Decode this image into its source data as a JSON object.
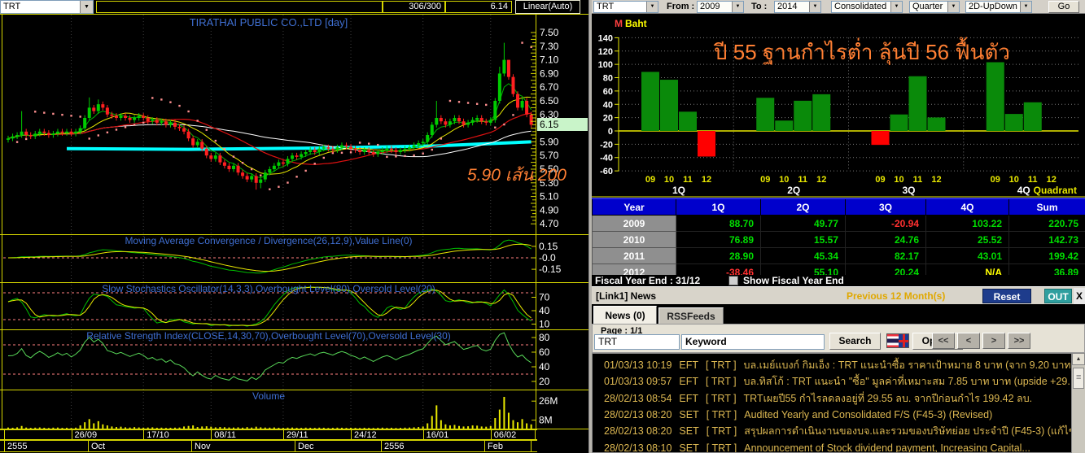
{
  "left_pane": {
    "toolbar": {
      "symbol": "TRT",
      "range_field": "306/300",
      "last_field": "6.14",
      "scale_mode": "Linear(Auto)"
    },
    "price_panel": {
      "title": "TIRATHAI PUBLIC CO.,LTD [day]",
      "annotation": "5.90 เส้น 200",
      "last_price": "6.15",
      "y_ticks": [
        7.5,
        7.3,
        7.1,
        6.9,
        6.7,
        6.5,
        6.3,
        5.9,
        5.7,
        5.5,
        5.3,
        5.1,
        4.9,
        4.7
      ]
    },
    "macd": {
      "title": "Moving Average Convergence / Divergence(26,12,9),Value Line(0)",
      "ticks": [
        [
          "0.15",
          0.15
        ],
        [
          "-0.0",
          0
        ],
        [
          "-0.15",
          -0.15
        ]
      ]
    },
    "stoch": {
      "title": "Slow Stochastics Oscillator(14,3,3),Overbought Level(80),Oversold Level(20)",
      "ticks": [
        [
          "70",
          70
        ],
        [
          "40",
          40
        ],
        [
          "10",
          10
        ]
      ]
    },
    "rsi": {
      "title": "Relative Strength Index(CLOSE,14,30,70),Overbought Level(70),Oversold Level(30)",
      "ticks": [
        [
          "80",
          80
        ],
        [
          "60",
          60
        ],
        [
          "40",
          40
        ],
        [
          "20",
          20
        ]
      ]
    },
    "volume": {
      "title": "Volume",
      "ticks": [
        [
          "26M",
          26
        ],
        [
          "8M",
          8
        ]
      ]
    },
    "date_axis": [
      "26/09",
      "17/10",
      "08/11",
      "29/11",
      "24/12",
      "16/01",
      "06/02"
    ],
    "month_axis": [
      "2555",
      "Oct",
      "Nov",
      "Dec",
      "2556",
      "Feb"
    ]
  },
  "right_pane": {
    "toolbar": {
      "symbol": "TRT",
      "from_label": "From :",
      "from_value": "2009",
      "to_label": "To :",
      "to_value": "2014",
      "statement": "Consolidated",
      "period": "Quarter",
      "chart_type": "2D-UpDown",
      "go_label": "Go"
    },
    "unit_m": "M",
    "unit_baht": "Baht",
    "quadrant_label": "Quadrant",
    "table": {
      "headers": [
        "Year",
        "1Q",
        "2Q",
        "3Q",
        "4Q",
        "Sum"
      ],
      "rows": [
        {
          "year": "2009",
          "values": [
            "88.70",
            "49.77",
            "-20.94",
            "103.22",
            "220.75"
          ]
        },
        {
          "year": "2010",
          "values": [
            "76.89",
            "15.57",
            "24.76",
            "25.52",
            "142.73"
          ]
        },
        {
          "year": "2011",
          "values": [
            "28.90",
            "45.34",
            "82.17",
            "43.01",
            "199.42"
          ]
        },
        {
          "year": "2012",
          "values": [
            "-38.46",
            "55.10",
            "20.24",
            "N/A",
            "36.89"
          ]
        }
      ]
    },
    "fiscal": {
      "text": "Fiscal  Year  End  :  31/12",
      "checkbox_label": "Show Fiscal Year End"
    },
    "news": {
      "title": "[Link1] News",
      "period_note": "Previous 12 Month(s)",
      "reset_label": "Reset",
      "out_label": "OUT",
      "close_label": "X",
      "tabs": [
        "News (0)",
        "RSSFeeds"
      ],
      "page_label": "Page : 1/1",
      "symbol_input": "TRT",
      "keyword_input": "Keyword",
      "search_label": "Search",
      "option_label": "Option",
      "nav": [
        "<<",
        "<",
        ">",
        ">>"
      ],
      "items": [
        {
          "date": "01/03/13 10:19",
          "src": "EFT",
          "sym": "[ TRT ]",
          "text": "บล.เมย์แบงก์ กิมเอ็ง : TRT แนะนำซื้อ ราคาเป้าหมาย 8 บาท (จาก 9.20 บาท)"
        },
        {
          "date": "01/03/13 09:57",
          "src": "EFT",
          "sym": "[ TRT ]",
          "text": "บล.ทิสโก้ : TRT แนะนำ \"ซื้อ\" มูลค่าที่เหมาะสม 7.85 บาท บาท (upside +29..."
        },
        {
          "date": "28/02/13 08:54",
          "src": "EFT",
          "sym": "[ TRT ]",
          "text": "TRTเผยปี55 กำไรลดลงอยู่ที่ 29.55 ลบ. จากปีก่อนกำไร 199.42 ลบ."
        },
        {
          "date": "28/02/13 08:20",
          "src": "SET",
          "sym": "[ TRT ]",
          "text": "Audited Yearly and Consolidated F/S (F45-3) (Revised)"
        },
        {
          "date": "28/02/13 08:20",
          "src": "SET",
          "sym": "[ TRT ]",
          "text": "สรุปผลการดำเนินงานของบจ.และรวมของบริษัทย่อย ประจำปี (F45-3) (แก้ไข)"
        },
        {
          "date": "28/02/13 08:10",
          "src": "SET",
          "sym": "[ TRT ]",
          "text": "Announcement of Stock dividend payment, Increasing Capital..."
        }
      ]
    }
  },
  "chart_data": [
    {
      "type": "candlestick",
      "title": "TIRATHAI PUBLIC CO.,LTD [day]",
      "ylim": [
        4.6,
        7.6
      ],
      "first_open": 5.93,
      "closes": [
        5.95,
        5.98,
        6.0,
        6.05,
        6.0,
        5.98,
        6.02,
        6.05,
        6.03,
        6.0,
        6.02,
        6.05,
        6.03,
        6.05,
        6.02,
        6.05,
        6.1,
        6.25,
        6.4,
        6.35,
        6.45,
        6.4,
        6.3,
        6.28,
        6.25,
        6.28,
        6.25,
        6.22,
        6.25,
        6.28,
        6.25,
        6.2,
        6.22,
        6.18,
        6.2,
        6.15,
        6.18,
        6.12,
        6.1,
        6.05,
        5.95,
        5.85,
        5.9,
        5.8,
        5.7,
        5.65,
        5.7,
        5.6,
        5.55,
        5.5,
        5.55,
        5.45,
        5.4,
        5.35,
        5.4,
        5.3,
        5.35,
        5.45,
        5.5,
        5.55,
        5.6,
        5.58,
        5.65,
        5.7,
        5.68,
        5.72,
        5.75,
        5.78,
        5.75,
        5.8,
        5.82,
        5.8,
        5.78,
        5.82,
        5.85,
        5.83,
        5.8,
        5.78,
        5.75,
        5.78,
        5.75,
        5.72,
        5.75,
        5.78,
        5.8,
        5.78,
        5.75,
        5.78,
        5.8,
        5.82,
        5.85,
        5.88,
        5.9,
        6.0,
        6.15,
        6.25,
        6.2,
        6.15,
        6.2,
        6.25,
        6.2,
        6.15,
        6.18,
        6.22,
        6.25,
        6.2,
        6.18,
        6.22,
        6.5,
        6.9,
        7.1,
        6.85,
        6.6,
        6.4,
        6.5,
        6.3,
        6.15
      ],
      "wick_highs": {
        "3": 6.35,
        "18": 6.55,
        "20": 6.52,
        "95": 6.5,
        "109": 7.0,
        "110": 7.35,
        "111": 7.1
      },
      "wick_lows": {
        "55": 5.2,
        "56": 5.22
      },
      "volumes_m": [
        1,
        0.8,
        1.2,
        2.5,
        1,
        0.7,
        0.9,
        1.1,
        0.8,
        0.6,
        0.9,
        1,
        0.7,
        0.8,
        0.6,
        0.9,
        3,
        6,
        9,
        5,
        7,
        4,
        3,
        2,
        1.5,
        1.8,
        1.2,
        1,
        1.4,
        1.1,
        0.9,
        1,
        1.2,
        0.8,
        0.9,
        0.7,
        0.8,
        0.9,
        1,
        2,
        2.5,
        3,
        1.5,
        2,
        2.2,
        1.8,
        1.2,
        1.5,
        1.3,
        1.1,
        1,
        1.2,
        0.9,
        1.4,
        1,
        1.8,
        1.2,
        1,
        0.9,
        1.1,
        0.8,
        0.7,
        0.9,
        1,
        0.8,
        0.7,
        0.9,
        0.8,
        0.7,
        0.9,
        0.8,
        0.6,
        0.7,
        0.9,
        0.8,
        0.7,
        0.8,
        0.7,
        0.6,
        0.8,
        0.7,
        0.6,
        0.8,
        0.9,
        0.7,
        0.8,
        0.6,
        0.7,
        0.9,
        1,
        1.2,
        1.5,
        2,
        5,
        12,
        22,
        8,
        4,
        3,
        3.5,
        2.5,
        2,
        2.2,
        3,
        2.8,
        2,
        1.8,
        2.5,
        10,
        18,
        30,
        15,
        8,
        6,
        9,
        5,
        4
      ],
      "ma200_anchors": [
        [
          13,
          5.8
        ],
        [
          40,
          5.79
        ],
        [
          70,
          5.81
        ],
        [
          95,
          5.84
        ],
        [
          116,
          5.9
        ]
      ],
      "date_tick_days": [
        14,
        30,
        45,
        61,
        76,
        92,
        107
      ]
    },
    {
      "type": "bar",
      "annotation": "ปี 55 ฐานกำไรต่ำ ลุ้นปี 56 ฟื้นตัว",
      "ylabel": "M Baht",
      "ylim": [
        -60,
        140
      ],
      "ytick_step": 20,
      "groups": [
        "1Q",
        "2Q",
        "3Q",
        "4Q"
      ],
      "years": [
        "09",
        "10",
        "11",
        "12"
      ],
      "values": {
        "1Q": [
          88.7,
          76.89,
          28.9,
          -38.46
        ],
        "2Q": [
          49.77,
          15.57,
          45.34,
          55.1
        ],
        "3Q": [
          -20.94,
          24.76,
          82.17,
          20.24
        ],
        "4Q": [
          103.22,
          25.52,
          43.01,
          null
        ]
      }
    }
  ],
  "colors": {
    "up": "#00cc00",
    "down": "#ff2020",
    "bar_pos": "#0a8a0a",
    "bar_neg": "#ff0000",
    "pos_text": "#00dd00",
    "neg_text": "#ff3030",
    "na_text": "#ffff00",
    "news_text": "#ddb852",
    "annotation": "#ff7f33",
    "grid": "#3d3d3d",
    "axis_yellow": "#d6d600"
  }
}
